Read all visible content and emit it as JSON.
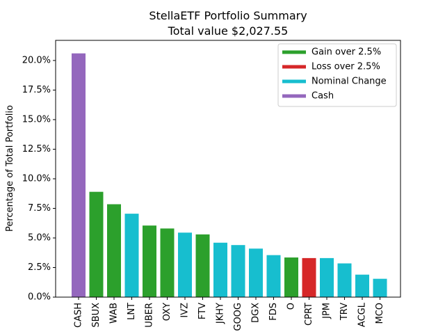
{
  "chart_data": {
    "type": "bar",
    "title": "StellaETF Portfolio Summary",
    "subtitle": "Total value $2,027.55",
    "xlabel": "",
    "ylabel": "Percentage of Total Portfolio",
    "ylim": [
      0,
      21.7
    ],
    "yticks": [
      "0.0%",
      "2.5%",
      "5.0%",
      "7.5%",
      "10.0%",
      "12.5%",
      "15.0%",
      "17.5%",
      "20.0%"
    ],
    "ytick_values": [
      0,
      2.5,
      5.0,
      7.5,
      10.0,
      12.5,
      15.0,
      17.5,
      20.0
    ],
    "grid": false,
    "legend_position": "top-right",
    "legend": [
      {
        "label": "Gain over 2.5%",
        "color": "#2ca02c"
      },
      {
        "label": "Loss over 2.5%",
        "color": "#d62728"
      },
      {
        "label": "Nominal Change",
        "color": "#17becf"
      },
      {
        "label": "Cash",
        "color": "#9467bd"
      }
    ],
    "categories": [
      "CASH",
      "SBUX",
      "WAB",
      "LNT",
      "UBER",
      "OXY",
      "IVZ",
      "FTV",
      "JKHY",
      "GOOG",
      "DGX",
      "FDS",
      "O",
      "CPRT",
      "JPM",
      "TRV",
      "ACGL",
      "MCO"
    ],
    "values": [
      20.6,
      8.9,
      7.85,
      7.05,
      6.05,
      5.8,
      5.45,
      5.3,
      4.6,
      4.4,
      4.1,
      3.55,
      3.35,
      3.3,
      3.3,
      2.85,
      1.9,
      1.55
    ],
    "groups": [
      "Cash",
      "Gain over 2.5%",
      "Gain over 2.5%",
      "Nominal Change",
      "Gain over 2.5%",
      "Gain over 2.5%",
      "Nominal Change",
      "Gain over 2.5%",
      "Nominal Change",
      "Nominal Change",
      "Nominal Change",
      "Nominal Change",
      "Gain over 2.5%",
      "Loss over 2.5%",
      "Nominal Change",
      "Nominal Change",
      "Nominal Change",
      "Nominal Change"
    ]
  }
}
